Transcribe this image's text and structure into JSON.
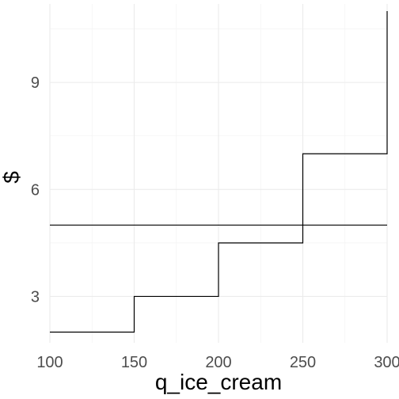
{
  "chart_data": {
    "type": "line",
    "title": "",
    "xlabel": "q_ice_cream",
    "ylabel": "$",
    "xlim": [
      100,
      300
    ],
    "ylim": [
      1.7,
      11.2
    ],
    "x_ticks": [
      100,
      150,
      200,
      250,
      300
    ],
    "y_ticks": [
      3,
      6,
      9
    ],
    "grid": true,
    "legend": "none",
    "series": [
      {
        "line_type": "step",
        "color": "#000000",
        "points": [
          [
            100,
            2
          ],
          [
            149,
            2
          ],
          [
            150,
            3
          ],
          [
            199,
            3
          ],
          [
            200,
            4.5
          ],
          [
            249,
            4.5
          ],
          [
            250,
            7
          ],
          [
            299,
            7
          ],
          [
            300,
            11
          ]
        ]
      },
      {
        "line_type": "straight",
        "color": "#000000",
        "points": [
          [
            100,
            5
          ],
          [
            300,
            5
          ]
        ]
      }
    ]
  }
}
